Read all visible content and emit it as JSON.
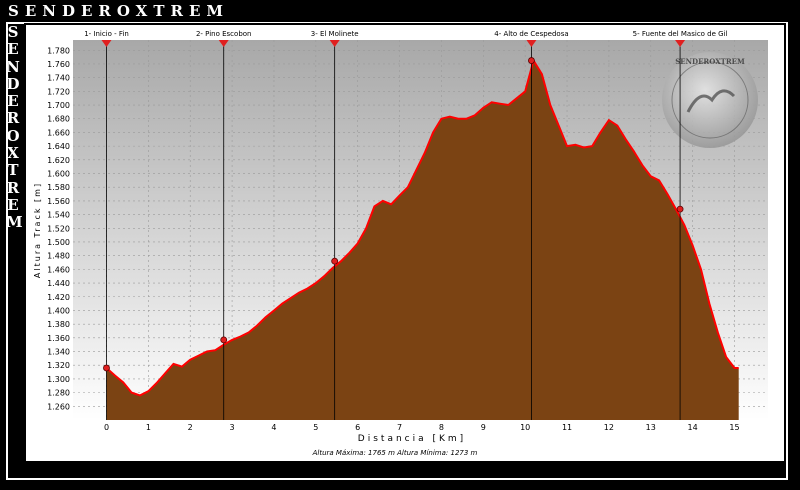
{
  "brand": {
    "name": "SENDEROXTREM",
    "side": "SENDEROXTREM",
    "logo_text": "SENDEROXTREM"
  },
  "chart_data": {
    "type": "area",
    "xlabel": "Distancia [Km]",
    "ylabel": "Altura Track [m]",
    "xlim": [
      -0.8,
      15.8
    ],
    "ylim": [
      1240,
      1795
    ],
    "xticks": [
      0,
      1,
      2,
      3,
      4,
      5,
      6,
      7,
      8,
      9,
      10,
      11,
      12,
      13,
      14,
      15
    ],
    "yticks": [
      1260,
      1280,
      1300,
      1320,
      1340,
      1360,
      1380,
      1400,
      1420,
      1440,
      1460,
      1480,
      1500,
      1520,
      1540,
      1560,
      1580,
      1600,
      1620,
      1640,
      1660,
      1680,
      1700,
      1720,
      1740,
      1760,
      1780
    ],
    "ytick_labels": [
      "1.260",
      "1.280",
      "1.300",
      "1.320",
      "1.340",
      "1.360",
      "1.380",
      "1.400",
      "1.420",
      "1.440",
      "1.460",
      "1.480",
      "1.500",
      "1.520",
      "1.540",
      "1.560",
      "1.580",
      "1.600",
      "1.620",
      "1.640",
      "1.660",
      "1.680",
      "1.700",
      "1.720",
      "1.740",
      "1.760",
      "1.780"
    ],
    "grid": true,
    "fill_color": "#7B4313",
    "line_color": "#FF0000",
    "x": [
      0.0,
      0.2,
      0.4,
      0.6,
      0.8,
      1.0,
      1.2,
      1.4,
      1.6,
      1.8,
      2.0,
      2.2,
      2.4,
      2.6,
      2.8,
      3.0,
      3.2,
      3.4,
      3.6,
      3.8,
      4.0,
      4.2,
      4.4,
      4.6,
      4.8,
      5.0,
      5.2,
      5.4,
      5.6,
      5.8,
      6.0,
      6.2,
      6.4,
      6.6,
      6.8,
      7.0,
      7.2,
      7.4,
      7.6,
      7.8,
      8.0,
      8.2,
      8.4,
      8.6,
      8.8,
      9.0,
      9.2,
      9.4,
      9.6,
      9.8,
      10.0,
      10.2,
      10.4,
      10.6,
      10.8,
      11.0,
      11.2,
      11.4,
      11.6,
      11.8,
      12.0,
      12.2,
      12.4,
      12.6,
      12.8,
      13.0,
      13.2,
      13.4,
      13.6,
      13.8,
      14.0,
      14.2,
      14.4,
      14.6,
      14.8,
      15.0,
      15.1
    ],
    "y": [
      1316,
      1305,
      1295,
      1280,
      1276,
      1282,
      1294,
      1308,
      1322,
      1318,
      1328,
      1334,
      1340,
      1342,
      1350,
      1357,
      1362,
      1368,
      1378,
      1390,
      1400,
      1410,
      1418,
      1426,
      1432,
      1440,
      1450,
      1462,
      1472,
      1484,
      1498,
      1520,
      1552,
      1560,
      1555,
      1568,
      1580,
      1605,
      1630,
      1660,
      1680,
      1683,
      1680,
      1680,
      1685,
      1696,
      1704,
      1702,
      1700,
      1710,
      1720,
      1765,
      1745,
      1700,
      1670,
      1640,
      1642,
      1638,
      1640,
      1660,
      1678,
      1670,
      1650,
      1632,
      1612,
      1596,
      1590,
      1570,
      1548,
      1525,
      1495,
      1460,
      1410,
      1368,
      1332,
      1316,
      1316
    ],
    "waypoints": [
      {
        "label": "1- Inicio - Fin",
        "x": 0.0,
        "y": 1316
      },
      {
        "label": "2- Pino Escobon",
        "x": 2.8,
        "y": 1357
      },
      {
        "label": "3- El Molinete",
        "x": 5.45,
        "y": 1472
      },
      {
        "label": "4- Alto de Cespedosa",
        "x": 10.15,
        "y": 1765
      },
      {
        "label": "5- Fuente del Masico de Gil",
        "x": 13.7,
        "y": 1548
      }
    ],
    "stats": "Altura Máxima: 1765 m   Altura Mínima: 1273 m"
  }
}
